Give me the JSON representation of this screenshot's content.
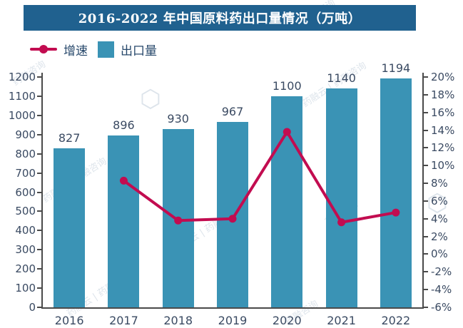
{
  "title": "2016-2022 年中国原料药出口量情况（万吨）",
  "legend": {
    "growth_label": "增速",
    "export_label": "出口量"
  },
  "chart_data": {
    "type": "bar+line",
    "title": "2016-2022 年中国原料药出口量情况（万吨）",
    "categories": [
      "2016",
      "2017",
      "2018",
      "2019",
      "2020",
      "2021",
      "2022"
    ],
    "series": [
      {
        "name": "出口量",
        "type": "bar",
        "axis": "left",
        "unit": "万吨",
        "values": [
          827,
          896,
          930,
          967,
          1100,
          1140,
          1194
        ]
      },
      {
        "name": "增速",
        "type": "line",
        "axis": "right",
        "unit": "%",
        "values": [
          null,
          8.3,
          3.8,
          4.0,
          13.8,
          3.6,
          4.7
        ]
      }
    ],
    "left_axis": {
      "min": 0,
      "max": 1200,
      "step": 100
    },
    "right_axis": {
      "min": -6,
      "max": 20,
      "step": 2,
      "format": "percent"
    },
    "grid": false,
    "bar_labels": true,
    "legend_position": "top-left"
  },
  "colors": {
    "banner": "#20618F",
    "bar": "#3A93B5",
    "line": "#C20C50",
    "text": "#3A4A62",
    "legend_text": "#27486B",
    "axis": "#4A4A4A",
    "watermark_gray": "rgba(150,172,192,0.32)",
    "watermark_white": "rgba(255,255,255,0.25)"
  },
  "watermarks": {
    "brand": "药融云 | 药融咨询",
    "short": "药融咨询",
    "logo": "⬡"
  }
}
